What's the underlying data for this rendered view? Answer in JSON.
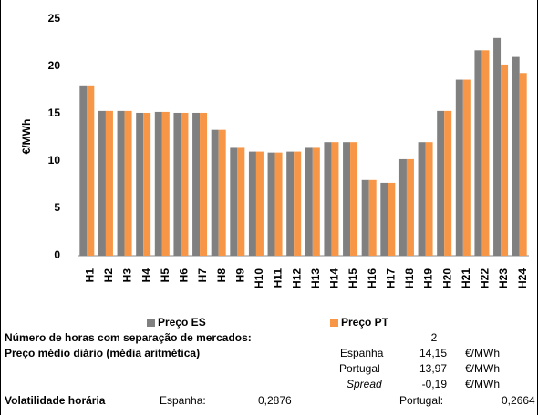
{
  "chart_data": {
    "type": "bar",
    "ylabel": "€/MWh",
    "categories": [
      "H1",
      "H2",
      "H3",
      "H4",
      "H5",
      "H6",
      "H7",
      "H8",
      "H9",
      "H10",
      "H11",
      "H12",
      "H13",
      "H14",
      "H15",
      "H16",
      "H17",
      "H18",
      "H19",
      "H20",
      "H21",
      "H22",
      "H23",
      "H24"
    ],
    "series": [
      {
        "name": "Preço ES",
        "color": "#808080",
        "values": [
          18.0,
          15.3,
          15.3,
          15.1,
          15.2,
          15.1,
          15.1,
          13.3,
          11.4,
          11.0,
          10.9,
          11.0,
          11.4,
          12.0,
          12.0,
          8.0,
          7.7,
          10.2,
          12.0,
          15.3,
          18.6,
          21.7,
          23.0,
          21.0
        ]
      },
      {
        "name": "Preço PT",
        "color": "#f79646",
        "values": [
          18.0,
          15.3,
          15.3,
          15.1,
          15.2,
          15.1,
          15.1,
          13.3,
          11.4,
          11.0,
          10.9,
          11.0,
          11.4,
          12.0,
          12.0,
          8.0,
          7.7,
          10.2,
          12.0,
          15.3,
          18.6,
          21.7,
          20.2,
          19.3
        ]
      }
    ],
    "ylim": [
      0,
      25
    ],
    "yticks": [
      0,
      5,
      10,
      15,
      20,
      25
    ],
    "grid": false,
    "legend": "bottom"
  },
  "summary": {
    "hours_label": "Número de horas com separação de mercados:",
    "hours_value": "2",
    "avg_label": "Preço médio diário (média aritmética)",
    "avg_rows": [
      {
        "name": "Espanha",
        "value": "14,15",
        "unit": "€/MWh"
      },
      {
        "name": "Portugal",
        "value": "13,97",
        "unit": "€/MWh"
      },
      {
        "name": "Spread",
        "value": "-0,19",
        "unit": "€/MWh"
      }
    ],
    "vol_label": "Volatilidade horária",
    "vol_es_label": "Espanha:",
    "vol_es_value": "0,2876",
    "vol_pt_label": "Portugal:",
    "vol_pt_value": "0,2664"
  }
}
